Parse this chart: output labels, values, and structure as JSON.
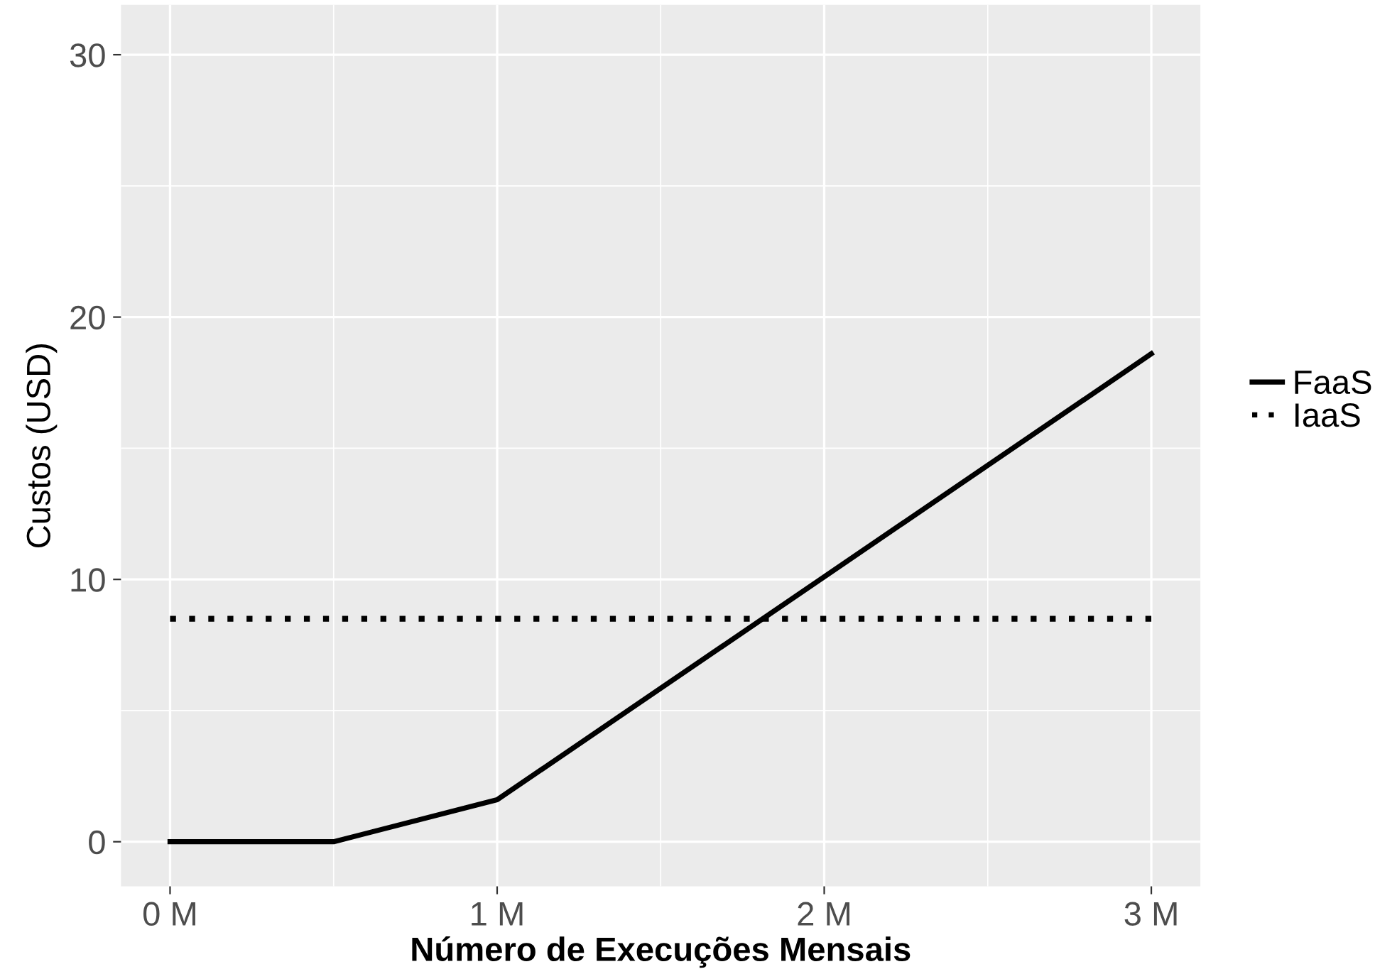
{
  "chart_data": {
    "type": "line",
    "xlabel": "Número de Execuções Mensais",
    "ylabel": "Custos (USD)",
    "xlim": [
      -0.15,
      3.15
    ],
    "xticks": [
      {
        "value": 0,
        "label": "0 M"
      },
      {
        "value": 1,
        "label": "1 M"
      },
      {
        "value": 2,
        "label": "2 M"
      },
      {
        "value": 3,
        "label": "3 M"
      }
    ],
    "ylim": [
      -1.7,
      31.9
    ],
    "yticks": [
      0,
      10,
      20,
      30
    ],
    "grid": true,
    "legend": "right",
    "marker": "none",
    "series": [
      {
        "name": "FaaS",
        "color": "#000000",
        "line_style": "solid",
        "x": [
          0,
          0.5,
          1,
          3
        ],
        "values": [
          0,
          0,
          1.6,
          18.6
        ]
      },
      {
        "name": "IaaS",
        "color": "#000000",
        "line_style": "dotted",
        "x": [
          0,
          3
        ],
        "values": [
          8.5,
          8.5
        ]
      }
    ]
  }
}
